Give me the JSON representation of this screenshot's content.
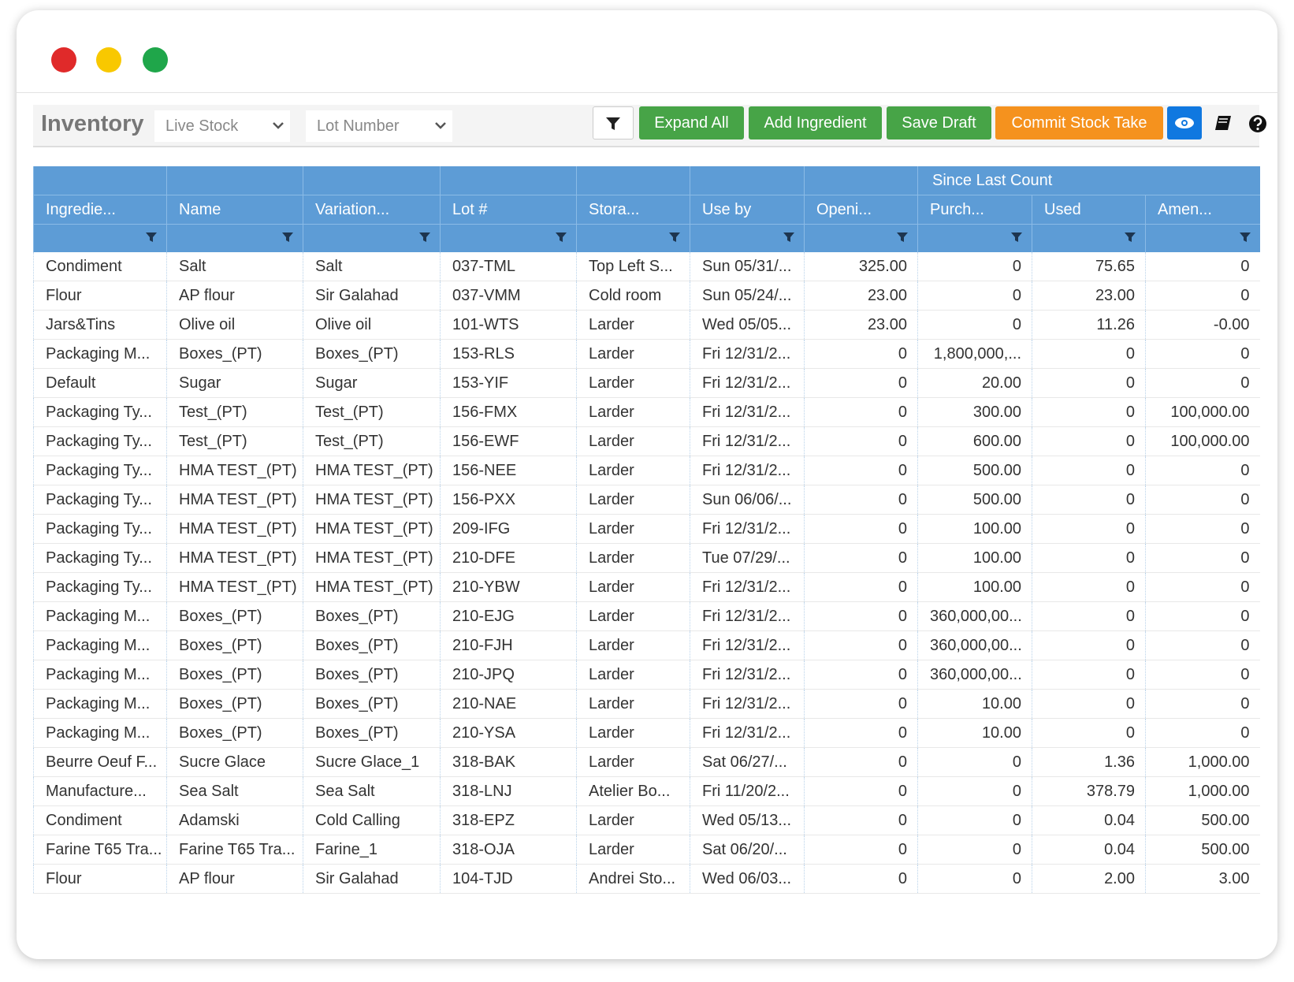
{
  "toolbar": {
    "title": "Inventory",
    "selects": [
      "Live Stock",
      "Lot Number"
    ],
    "buttons": [
      "Expand All",
      "Add Ingredient",
      "Save Draft",
      "Commit Stock Take"
    ]
  },
  "table": {
    "group_header": "Since Last Count",
    "columns": [
      "Ingredie...",
      "Name",
      "Variation...",
      "Lot #",
      "Stora...",
      "Use by",
      "Openi...",
      "Purch...",
      "Used",
      "Amen..."
    ],
    "rows": [
      [
        "Condiment",
        "Salt",
        "Salt",
        "037-TML",
        "Top Left S...",
        "Sun 05/31/...",
        "325.00",
        "0",
        "75.65",
        "0"
      ],
      [
        "Flour",
        "AP flour",
        "Sir Galahad",
        "037-VMM",
        "Cold room",
        "Sun 05/24/...",
        "23.00",
        "0",
        "23.00",
        "0"
      ],
      [
        "Jars&Tins",
        "Olive oil",
        "Olive oil",
        "101-WTS",
        "Larder",
        "Wed 05/05...",
        "23.00",
        "0",
        "11.26",
        "-0.00"
      ],
      [
        "Packaging M...",
        "Boxes_(PT)",
        "Boxes_(PT)",
        "153-RLS",
        "Larder",
        "Fri 12/31/2...",
        "0",
        "1,800,000,...",
        "0",
        "0"
      ],
      [
        "Default",
        "Sugar",
        "Sugar",
        "153-YIF",
        "Larder",
        "Fri 12/31/2...",
        "0",
        "20.00",
        "0",
        "0"
      ],
      [
        "Packaging Ty...",
        "Test_(PT)",
        "Test_(PT)",
        "156-FMX",
        "Larder",
        "Fri 12/31/2...",
        "0",
        "300.00",
        "0",
        "100,000.00"
      ],
      [
        "Packaging Ty...",
        "Test_(PT)",
        "Test_(PT)",
        "156-EWF",
        "Larder",
        "Fri 12/31/2...",
        "0",
        "600.00",
        "0",
        "100,000.00"
      ],
      [
        "Packaging Ty...",
        "HMA TEST_(PT)",
        "HMA TEST_(PT)",
        "156-NEE",
        "Larder",
        "Fri 12/31/2...",
        "0",
        "500.00",
        "0",
        "0"
      ],
      [
        "Packaging Ty...",
        "HMA TEST_(PT)",
        "HMA TEST_(PT)",
        "156-PXX",
        "Larder",
        "Sun 06/06/...",
        "0",
        "500.00",
        "0",
        "0"
      ],
      [
        "Packaging Ty...",
        "HMA TEST_(PT)",
        "HMA TEST_(PT)",
        "209-IFG",
        "Larder",
        "Fri 12/31/2...",
        "0",
        "100.00",
        "0",
        "0"
      ],
      [
        "Packaging Ty...",
        "HMA TEST_(PT)",
        "HMA TEST_(PT)",
        "210-DFE",
        "Larder",
        "Tue 07/29/...",
        "0",
        "100.00",
        "0",
        "0"
      ],
      [
        "Packaging Ty...",
        "HMA TEST_(PT)",
        "HMA TEST_(PT)",
        "210-YBW",
        "Larder",
        "Fri 12/31/2...",
        "0",
        "100.00",
        "0",
        "0"
      ],
      [
        "Packaging M...",
        "Boxes_(PT)",
        "Boxes_(PT)",
        "210-EJG",
        "Larder",
        "Fri 12/31/2...",
        "0",
        "360,000,00...",
        "0",
        "0"
      ],
      [
        "Packaging M...",
        "Boxes_(PT)",
        "Boxes_(PT)",
        "210-FJH",
        "Larder",
        "Fri 12/31/2...",
        "0",
        "360,000,00...",
        "0",
        "0"
      ],
      [
        "Packaging M...",
        "Boxes_(PT)",
        "Boxes_(PT)",
        "210-JPQ",
        "Larder",
        "Fri 12/31/2...",
        "0",
        "360,000,00...",
        "0",
        "0"
      ],
      [
        "Packaging M...",
        "Boxes_(PT)",
        "Boxes_(PT)",
        "210-NAE",
        "Larder",
        "Fri 12/31/2...",
        "0",
        "10.00",
        "0",
        "0"
      ],
      [
        "Packaging M...",
        "Boxes_(PT)",
        "Boxes_(PT)",
        "210-YSA",
        "Larder",
        "Fri 12/31/2...",
        "0",
        "10.00",
        "0",
        "0"
      ],
      [
        "Beurre Oeuf F...",
        "Sucre Glace",
        "Sucre Glace_1",
        "318-BAK",
        "Larder",
        "Sat 06/27/...",
        "0",
        "0",
        "1.36",
        "1,000.00"
      ],
      [
        "Manufacture...",
        "Sea Salt",
        "Sea Salt",
        "318-LNJ",
        "Atelier Bo...",
        "Fri 11/20/2...",
        "0",
        "0",
        "378.79",
        "1,000.00"
      ],
      [
        "Condiment",
        "Adamski",
        "Cold Calling",
        "318-EPZ",
        "Larder",
        "Wed 05/13...",
        "0",
        "0",
        "0.04",
        "500.00"
      ],
      [
        "Farine T65 Tra...",
        "Farine T65 Tra...",
        "Farine_1",
        "318-OJA",
        "Larder",
        "Sat 06/20/...",
        "0",
        "0",
        "0.04",
        "500.00"
      ],
      [
        "Flour",
        "AP flour",
        "Sir Galahad",
        "104-TJD",
        "Andrei Sto...",
        "Wed 06/03...",
        "0",
        "0",
        "2.00",
        "3.00"
      ]
    ]
  }
}
